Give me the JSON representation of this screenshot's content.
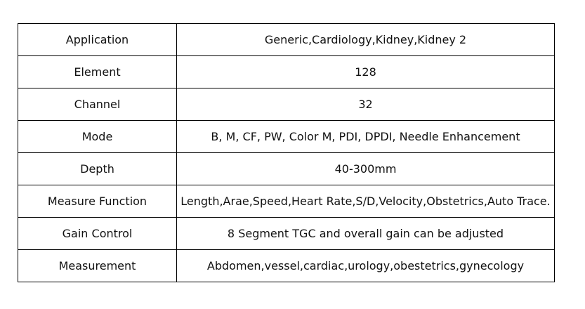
{
  "rows": [
    {
      "label": "Application",
      "value": "Generic,Cardiology,Kidney,Kidney 2"
    },
    {
      "label": "Element",
      "value": "128"
    },
    {
      "label": "Channel",
      "value": "32"
    },
    {
      "label": "Mode",
      "value": "B, M, CF, PW, Color M, PDI, DPDI, Needle Enhancement"
    },
    {
      "label": "Depth",
      "value": "40-300mm"
    },
    {
      "label": "Measure Function",
      "value": "Length,Arae,Speed,Heart Rate,S/D,Velocity,Obstetrics,Auto Trace."
    },
    {
      "label": "Gain Control",
      "value": "8 Segment TGC and overall gain can be adjusted"
    },
    {
      "label": "Measurement",
      "value": "Abdomen,vessel,cardiac,urology,obestetrics,gynecology"
    }
  ]
}
